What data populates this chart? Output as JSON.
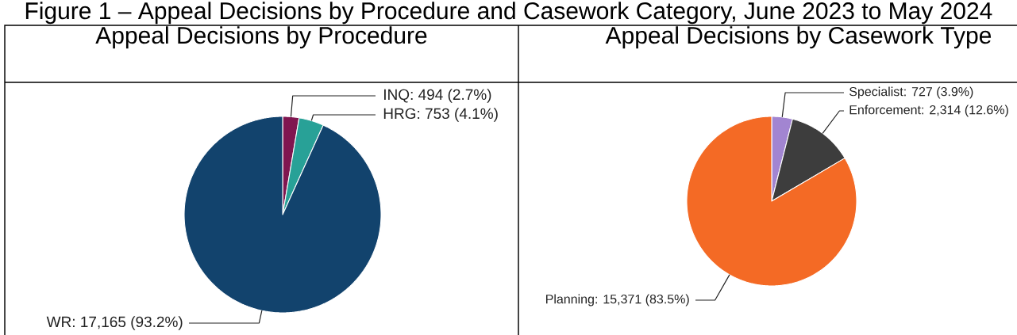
{
  "chart_data": [
    {
      "type": "pie",
      "title": "Appeal Decisions by Procedure",
      "annotations": [
        "Figure 1 – Appeal Decisions by Procedure and Casework Category, June 2023 to May 2024"
      ],
      "categories": [
        "INQ",
        "HRG",
        "WR"
      ],
      "values": [
        494,
        753,
        17165
      ],
      "colors": [
        "#801650",
        "#28a197",
        "#12436d"
      ],
      "value_labels": [
        ": 494 (2.7%)",
        ": 753 (4.1%)",
        ": 17,165 (93.2%)"
      ]
    },
    {
      "type": "pie",
      "title": "Appeal Decisions by Casework Type",
      "categories": [
        "Specialist",
        "Enforcement",
        "Planning"
      ],
      "values": [
        727,
        2314,
        15371
      ],
      "colors": [
        "#a285d1",
        "#3d3d3d",
        "#f46a25"
      ],
      "value_labels": [
        ": 727 (3.9%)",
        ": 2,314 (12.6%)",
        ": 15,371 (83.5%)"
      ]
    }
  ]
}
